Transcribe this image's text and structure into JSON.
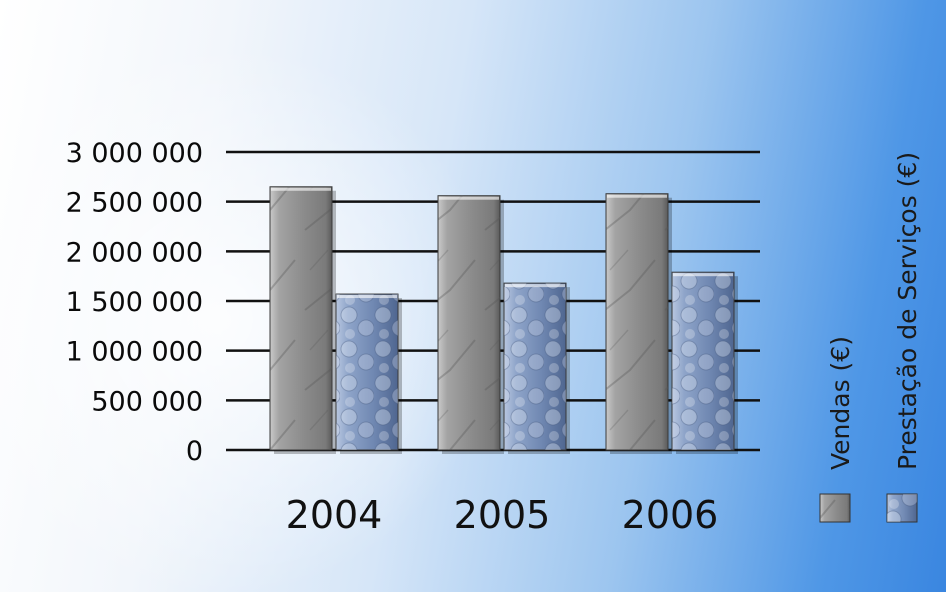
{
  "chart_data": {
    "type": "bar",
    "categories": [
      "2004",
      "2005",
      "2006"
    ],
    "series": [
      {
        "name": "Vendas (€)",
        "values": [
          2650000,
          2560000,
          2580000
        ],
        "color": "#8a8a8a"
      },
      {
        "name": "Prestação de Serviços (€)",
        "values": [
          1570000,
          1680000,
          1790000
        ],
        "color": "#7f97bf"
      }
    ],
    "y_ticks": [
      "0",
      "500 000",
      "1 000 000",
      "1 500 000",
      "2 000 000",
      "2 500 000",
      "3 000 000"
    ],
    "ylim": [
      0,
      3000000
    ],
    "grid": true,
    "legend_position": "right (rotated)"
  }
}
